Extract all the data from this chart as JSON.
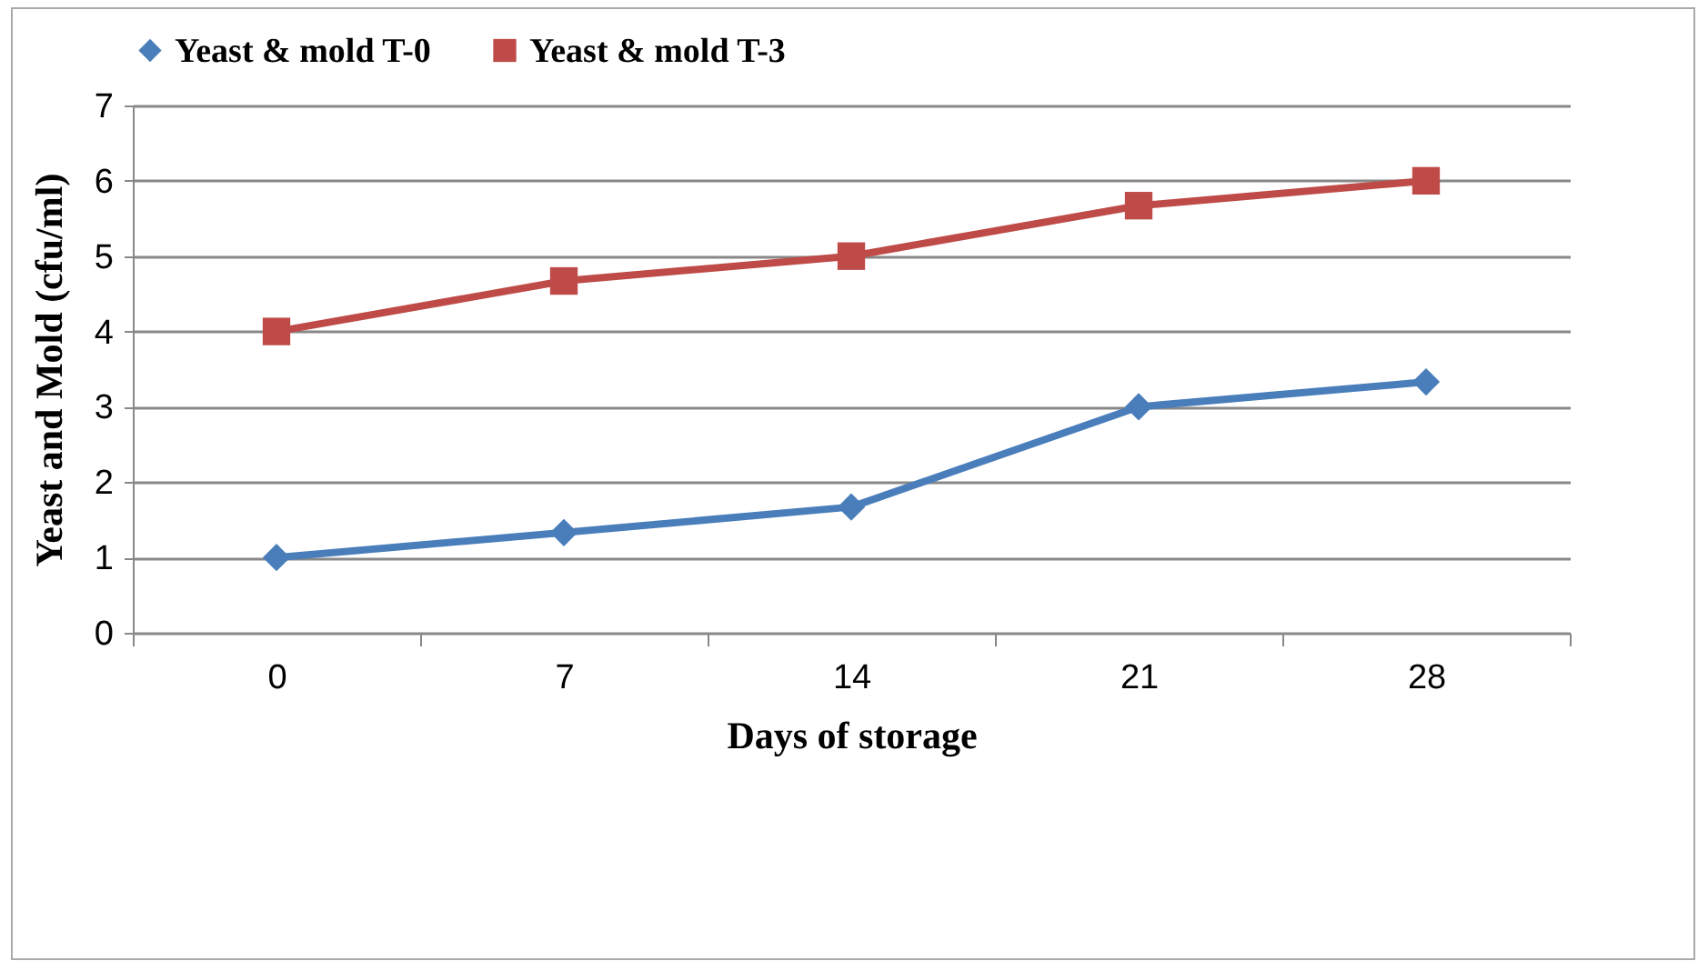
{
  "chart_data": {
    "type": "line",
    "xlabel": "Days of storage",
    "ylabel": "Yeast and Mold (cfu/ml)",
    "categories": [
      "0",
      "7",
      "14",
      "21",
      "28"
    ],
    "series": [
      {
        "name": "Yeast & mold T-0",
        "color": "#4a7ebb",
        "marker": "diamond",
        "values": [
          1,
          1.33,
          1.67,
          3,
          3.33
        ]
      },
      {
        "name": "Yeast & mold T-3",
        "color": "#be4b48",
        "marker": "square",
        "values": [
          4,
          4.67,
          5,
          5.67,
          6
        ]
      }
    ],
    "ylim": [
      0,
      7
    ],
    "yticks": [
      0,
      1,
      2,
      3,
      4,
      5,
      6,
      7
    ],
    "grid": "y",
    "legend": "top",
    "line_style": "solid"
  }
}
